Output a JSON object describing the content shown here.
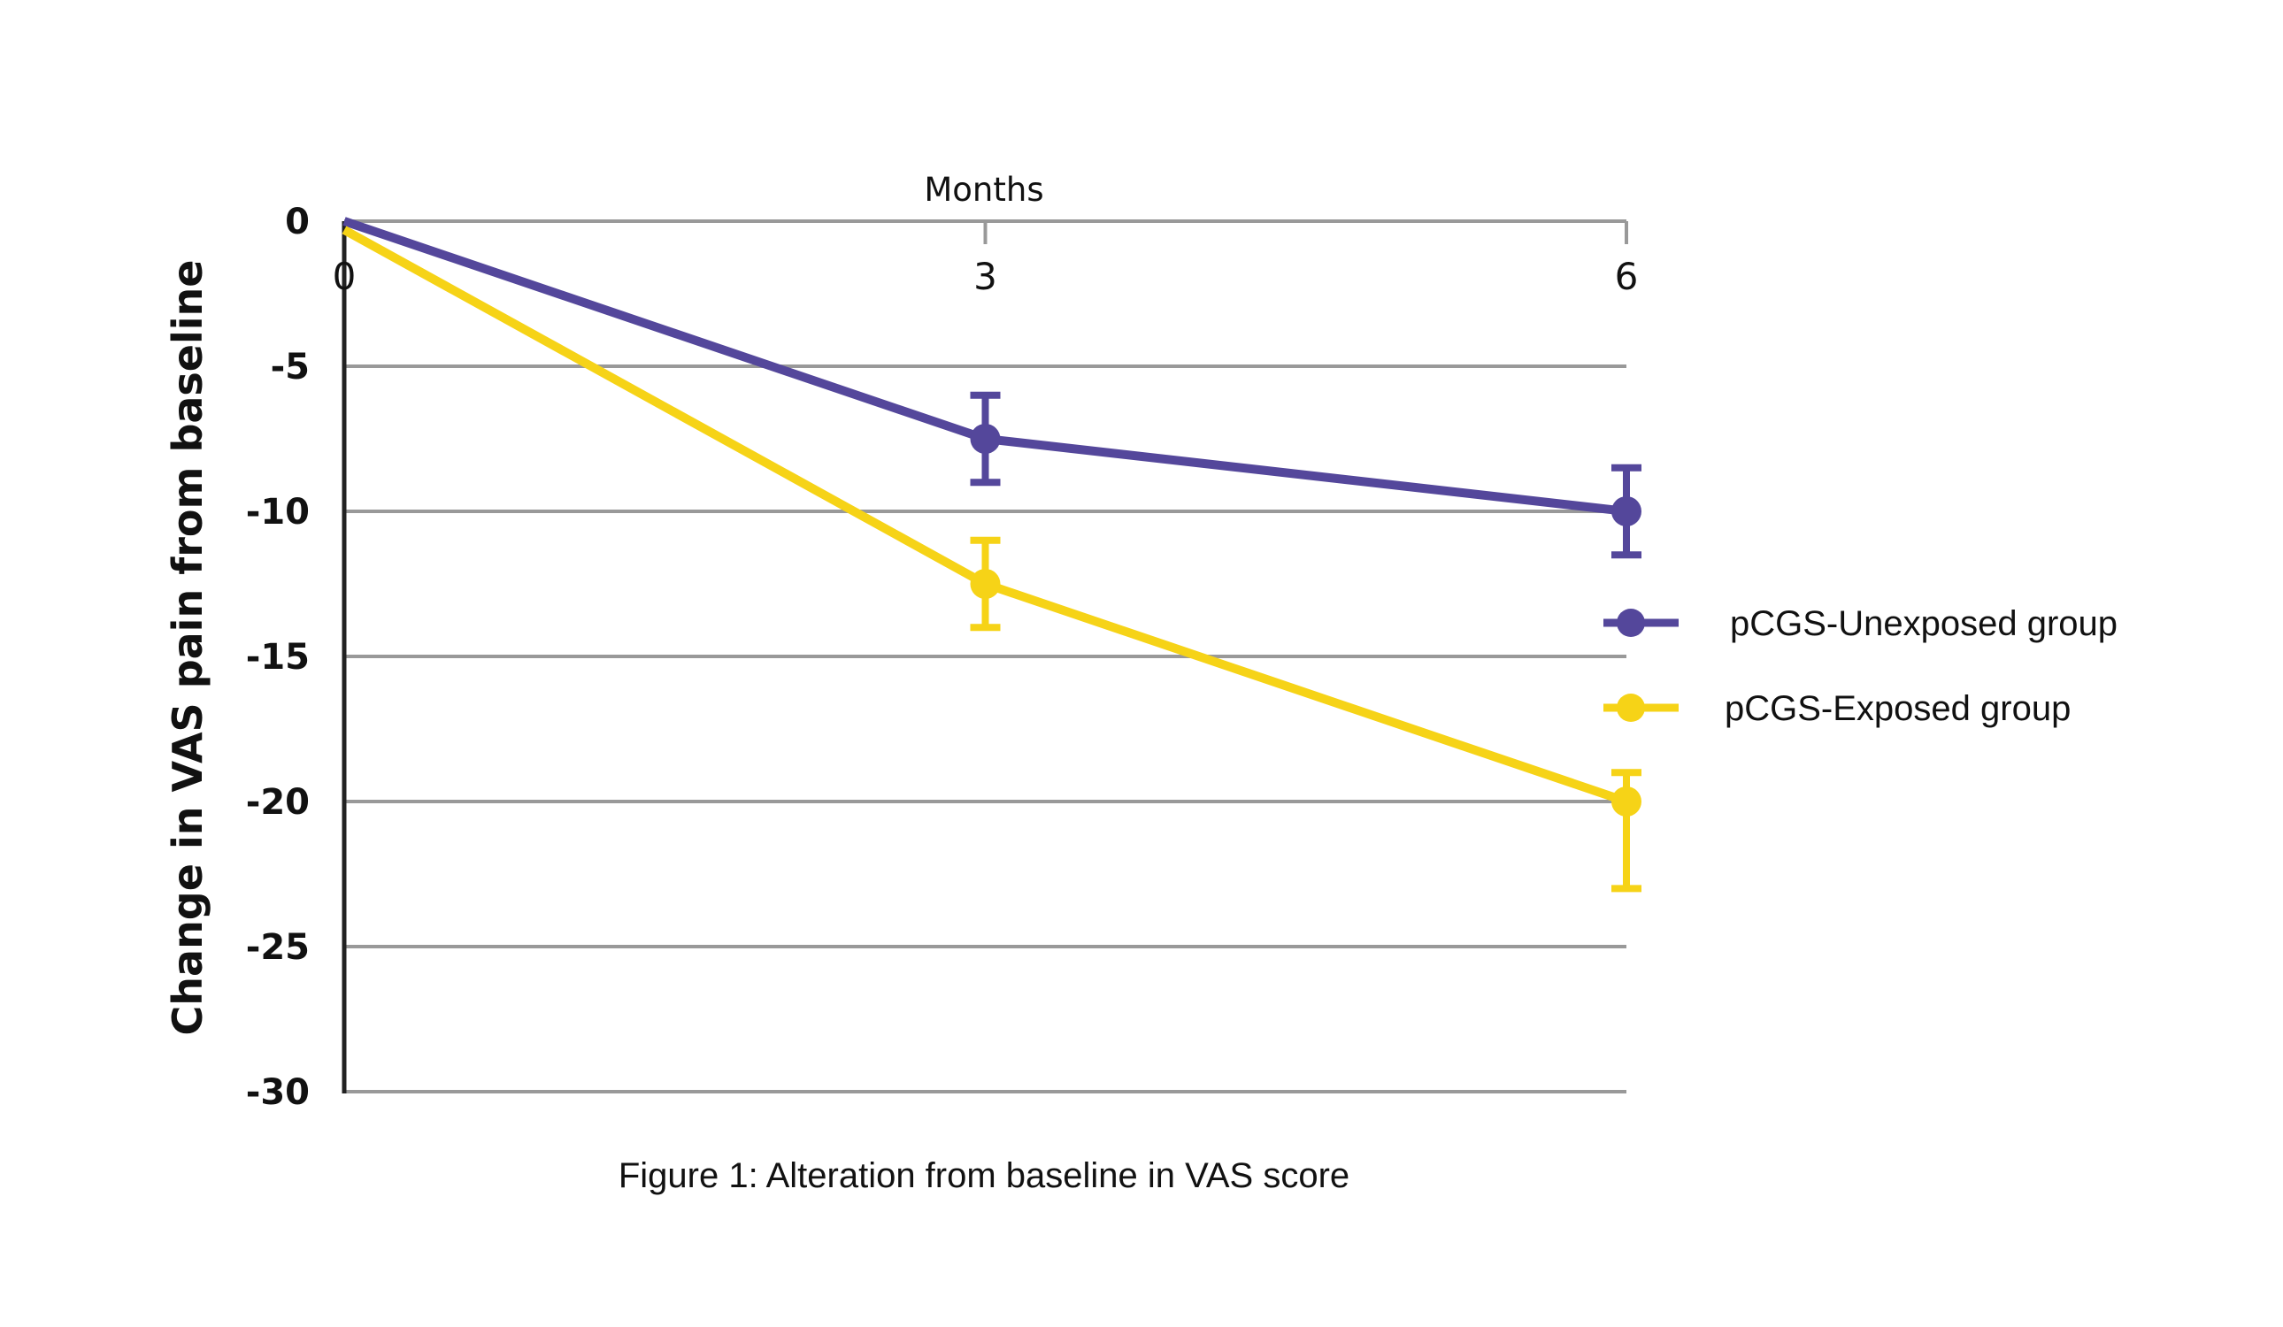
{
  "chart_data": {
    "type": "line",
    "title": "",
    "caption": "Figure 1: Alteration from baseline in VAS score",
    "xlabel": "Months",
    "ylabel": "Change in VAS pain from baseline",
    "x": [
      0,
      3,
      6
    ],
    "x_tick_labels": [
      "0",
      "3",
      "6"
    ],
    "y_ticks": [
      0,
      -5,
      -10,
      -15,
      -20,
      -25,
      -30
    ],
    "y_tick_labels": [
      "0",
      "-5",
      "-10",
      "-15",
      "-20",
      "-25",
      "-30"
    ],
    "xlim": [
      0,
      6
    ],
    "ylim": [
      -30,
      0
    ],
    "grid": true,
    "legend_position": "right",
    "series": [
      {
        "name": "pCGS-Unexposed group",
        "color": "#54479B",
        "values": [
          0,
          -7.5,
          -10
        ],
        "error_upper": [
          null,
          -6,
          -8.5
        ],
        "error_lower": [
          null,
          -9,
          -11.5
        ]
      },
      {
        "name": "pCGS-Exposed group",
        "color": "#F6D317",
        "values": [
          -0.3,
          -12.5,
          -20
        ],
        "error_upper": [
          null,
          -11,
          -19
        ],
        "error_lower": [
          null,
          -14,
          -23
        ]
      }
    ]
  }
}
